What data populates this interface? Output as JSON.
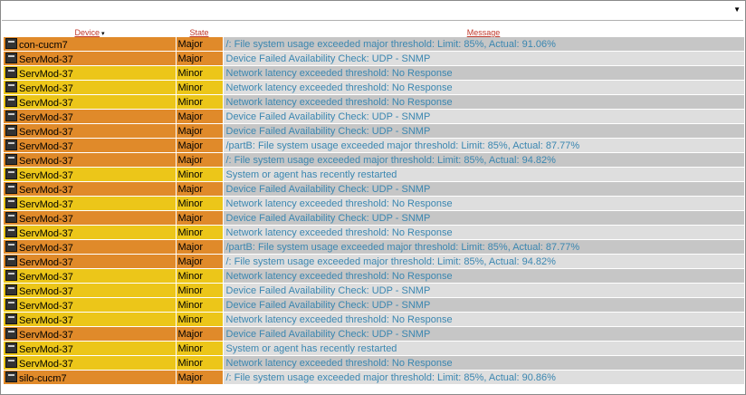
{
  "dropdown": {
    "value": "",
    "arrow_icon": "dropdown-arrow-icon"
  },
  "table": {
    "headers": {
      "device": "Device",
      "sort_indicator": "▾",
      "state": "State",
      "message": "Message"
    },
    "rows": [
      {
        "device": "con-cucm7",
        "state": "Major",
        "message": "/: File system usage exceeded major threshold: Limit: 85%, Actual: 91.06%"
      },
      {
        "device": "ServMod-37",
        "state": "Major",
        "message": "Device Failed Availability Check: UDP - SNMP"
      },
      {
        "device": "ServMod-37",
        "state": "Minor",
        "message": "Network latency exceeded threshold: No Response"
      },
      {
        "device": "ServMod-37",
        "state": "Minor",
        "message": "Network latency exceeded threshold: No Response"
      },
      {
        "device": "ServMod-37",
        "state": "Minor",
        "message": "Network latency exceeded threshold: No Response"
      },
      {
        "device": "ServMod-37",
        "state": "Major",
        "message": "Device Failed Availability Check: UDP - SNMP"
      },
      {
        "device": "ServMod-37",
        "state": "Major",
        "message": "Device Failed Availability Check: UDP - SNMP"
      },
      {
        "device": "ServMod-37",
        "state": "Major",
        "message": "/partB: File system usage exceeded major threshold: Limit: 85%, Actual: 87.77%"
      },
      {
        "device": "ServMod-37",
        "state": "Major",
        "message": "/: File system usage exceeded major threshold: Limit: 85%, Actual: 94.82%"
      },
      {
        "device": "ServMod-37",
        "state": "Minor",
        "message": "System or agent has recently restarted"
      },
      {
        "device": "ServMod-37",
        "state": "Major",
        "message": "Device Failed Availability Check: UDP - SNMP"
      },
      {
        "device": "ServMod-37",
        "state": "Minor",
        "message": "Network latency exceeded threshold: No Response"
      },
      {
        "device": "ServMod-37",
        "state": "Major",
        "message": "Device Failed Availability Check: UDP - SNMP"
      },
      {
        "device": "ServMod-37",
        "state": "Minor",
        "message": "Network latency exceeded threshold: No Response"
      },
      {
        "device": "ServMod-37",
        "state": "Major",
        "message": "/partB: File system usage exceeded major threshold: Limit: 85%, Actual: 87.77%"
      },
      {
        "device": "ServMod-37",
        "state": "Major",
        "message": "/: File system usage exceeded major threshold: Limit: 85%, Actual: 94.82%"
      },
      {
        "device": "ServMod-37",
        "state": "Minor",
        "message": "Network latency exceeded threshold: No Response"
      },
      {
        "device": "ServMod-37",
        "state": "Minor",
        "message": "Device Failed Availability Check: UDP - SNMP"
      },
      {
        "device": "ServMod-37",
        "state": "Minor",
        "message": "Device Failed Availability Check: UDP - SNMP"
      },
      {
        "device": "ServMod-37",
        "state": "Minor",
        "message": "Network latency exceeded threshold: No Response"
      },
      {
        "device": "ServMod-37",
        "state": "Major",
        "message": "Device Failed Availability Check: UDP - SNMP"
      },
      {
        "device": "ServMod-37",
        "state": "Minor",
        "message": "System or agent has recently restarted"
      },
      {
        "device": "ServMod-37",
        "state": "Minor",
        "message": "Network latency exceeded threshold: No Response"
      },
      {
        "device": "silo-cucm7",
        "state": "Major",
        "message": "/: File system usage exceeded major threshold: Limit: 85%, Actual: 90.86%"
      }
    ]
  },
  "colors": {
    "major": "#e08a2a",
    "minor": "#ecc619",
    "message_text": "#3a86b0",
    "header_link": "#c0392b"
  }
}
